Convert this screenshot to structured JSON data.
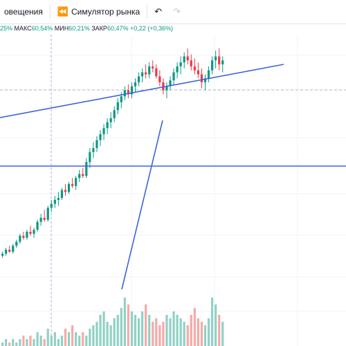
{
  "toolbar": {
    "alerts_label": "овещения",
    "replay_label": "Симулятор рынка",
    "undo_icon": "undo-icon",
    "redo_icon": "redo-icon"
  },
  "legend": {
    "open_tail": "25%",
    "high_label": "МАКС",
    "high_value": "60,54%",
    "low_label": "МИН",
    "low_value": "60,21%",
    "close_label": "ЗАКР",
    "close_value": "60,47%",
    "change_value": "+0,22 (+0,36%)"
  },
  "colors": {
    "up": "#089981",
    "down": "#f23645",
    "vol_up": "#8fd1c5",
    "vol_down": "#f7a9a7",
    "line": "#3d63d8",
    "grid": "#f0f3fa"
  },
  "chart_data": {
    "type": "candlestick",
    "candles": [
      [
        62,
        66,
        60,
        64
      ],
      [
        64,
        70,
        62,
        68
      ],
      [
        68,
        72,
        65,
        66
      ],
      [
        66,
        74,
        64,
        72
      ],
      [
        72,
        78,
        70,
        76
      ],
      [
        76,
        84,
        74,
        82
      ],
      [
        82,
        86,
        78,
        80
      ],
      [
        80,
        88,
        78,
        86
      ],
      [
        86,
        92,
        82,
        84
      ],
      [
        84,
        90,
        80,
        88
      ],
      [
        88,
        98,
        86,
        96
      ],
      [
        96,
        104,
        92,
        100
      ],
      [
        100,
        108,
        96,
        98
      ],
      [
        98,
        112,
        96,
        110
      ],
      [
        110,
        118,
        106,
        114
      ],
      [
        114,
        122,
        110,
        118
      ],
      [
        118,
        126,
        112,
        120
      ],
      [
        120,
        130,
        118,
        128
      ],
      [
        128,
        134,
        122,
        126
      ],
      [
        126,
        136,
        124,
        134
      ],
      [
        134,
        140,
        130,
        132
      ],
      [
        132,
        142,
        128,
        140
      ],
      [
        140,
        148,
        136,
        144
      ],
      [
        144,
        150,
        140,
        142
      ],
      [
        142,
        160,
        140,
        156
      ],
      [
        156,
        170,
        150,
        166
      ],
      [
        166,
        176,
        160,
        170
      ],
      [
        170,
        182,
        166,
        178
      ],
      [
        178,
        188,
        172,
        184
      ],
      [
        184,
        194,
        178,
        190
      ],
      [
        190,
        200,
        184,
        196
      ],
      [
        196,
        206,
        190,
        200
      ],
      [
        200,
        212,
        196,
        208
      ],
      [
        208,
        220,
        204,
        216
      ],
      [
        216,
        226,
        210,
        222
      ],
      [
        222,
        232,
        218,
        228
      ],
      [
        228,
        234,
        220,
        224
      ],
      [
        224,
        236,
        220,
        232
      ],
      [
        232,
        240,
        226,
        236
      ],
      [
        236,
        246,
        232,
        242
      ],
      [
        242,
        250,
        236,
        246
      ],
      [
        246,
        254,
        240,
        244
      ],
      [
        244,
        256,
        240,
        252
      ],
      [
        252,
        258,
        246,
        250
      ],
      [
        250,
        254,
        240,
        242
      ],
      [
        242,
        248,
        232,
        236
      ],
      [
        236,
        240,
        224,
        228
      ],
      [
        228,
        236,
        220,
        232
      ],
      [
        232,
        242,
        228,
        238
      ],
      [
        238,
        250,
        234,
        246
      ],
      [
        246,
        256,
        240,
        252
      ],
      [
        252,
        262,
        244,
        256
      ],
      [
        256,
        266,
        250,
        262
      ],
      [
        262,
        270,
        254,
        258
      ],
      [
        258,
        264,
        248,
        252
      ],
      [
        252,
        260,
        244,
        248
      ],
      [
        248,
        256,
        240,
        244
      ],
      [
        244,
        250,
        230,
        236
      ],
      [
        236,
        244,
        228,
        240
      ],
      [
        240,
        252,
        236,
        248
      ],
      [
        248,
        262,
        244,
        258
      ],
      [
        258,
        268,
        250,
        262
      ],
      [
        262,
        270,
        248,
        254
      ],
      [
        254,
        262,
        246,
        258
      ]
    ],
    "volume": [
      1,
      2,
      1,
      2,
      1,
      2,
      3,
      2,
      3,
      2,
      4,
      3,
      2,
      5,
      3,
      4,
      2,
      3,
      5,
      4,
      6,
      4,
      3,
      4,
      3,
      5,
      6,
      7,
      9,
      10,
      7,
      6,
      8,
      9,
      11,
      14,
      12,
      10,
      9,
      8,
      10,
      12,
      9,
      7,
      8,
      6,
      7,
      9,
      8,
      10,
      9,
      8,
      7,
      6,
      9,
      11,
      8,
      7,
      6,
      8,
      14,
      12,
      9,
      7
    ],
    "trendlines": [
      {
        "from": [
          0,
          170
        ],
        "to": [
          410,
          93
        ]
      },
      {
        "from": [
          0,
          240
        ],
        "to": [
          500,
          240
        ]
      },
      {
        "from": [
          176,
          418
        ],
        "to": [
          235,
          174
        ]
      }
    ]
  }
}
